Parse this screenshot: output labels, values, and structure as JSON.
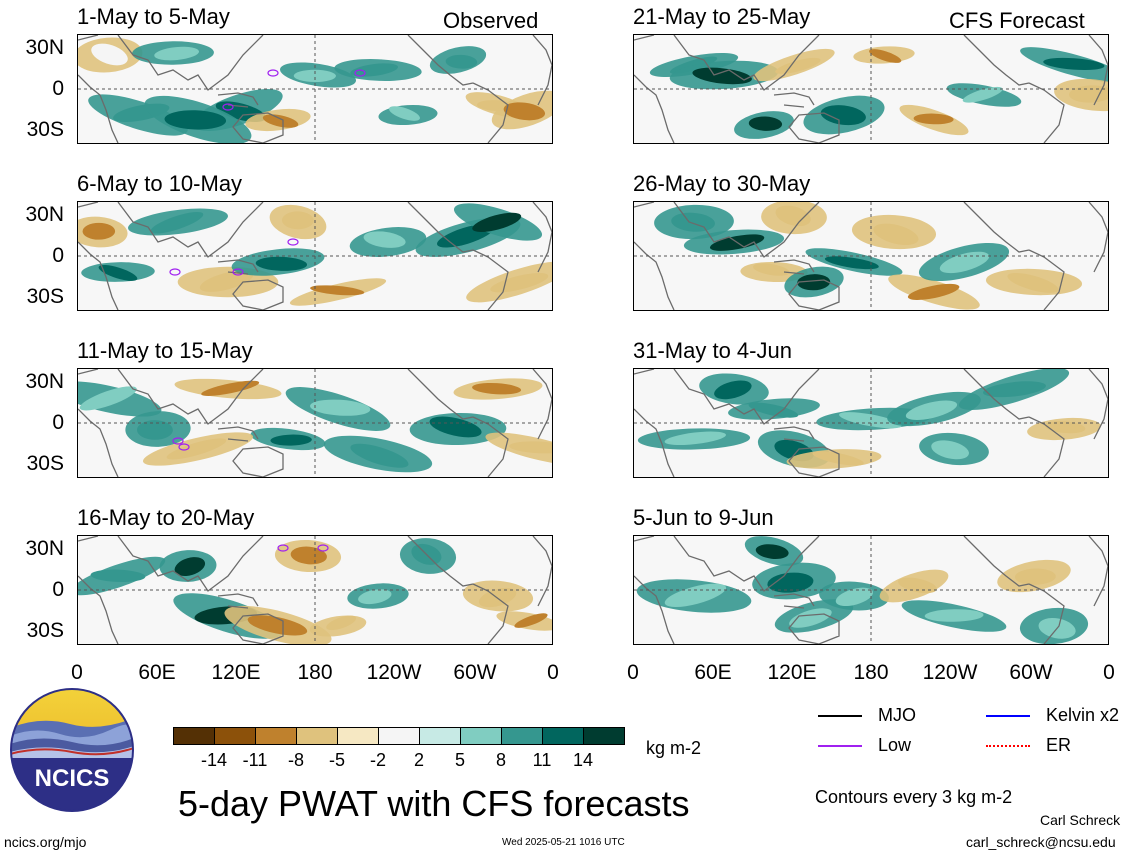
{
  "corner_labels": {
    "left": "Observed",
    "right": "CFS Forecast"
  },
  "lat_labels": [
    "30N",
    "0",
    "30S"
  ],
  "lon_labels": [
    "0",
    "60E",
    "120E",
    "180",
    "120W",
    "60W",
    "0"
  ],
  "panels": [
    {
      "title": "1-May to 5-May",
      "kind": "Observed"
    },
    {
      "title": "6-May to 10-May",
      "kind": "Observed"
    },
    {
      "title": "11-May to 15-May",
      "kind": "Observed"
    },
    {
      "title": "16-May to 20-May",
      "kind": "Observed"
    },
    {
      "title": "21-May to 25-May",
      "kind": "CFS Forecast"
    },
    {
      "title": "26-May to 30-May",
      "kind": "CFS Forecast"
    },
    {
      "title": "31-May to 4-Jun",
      "kind": "CFS Forecast"
    },
    {
      "title": "5-Jun to 9-Jun",
      "kind": "CFS Forecast"
    }
  ],
  "colorbar": {
    "colors": [
      "#543005",
      "#8c510a",
      "#bf812d",
      "#dfc27d",
      "#f6e8c3",
      "#f5f5f5",
      "#c7eae5",
      "#80cdc1",
      "#35978f",
      "#01665e",
      "#003c30"
    ],
    "labels": [
      "-14",
      "-11",
      "-8",
      "-5",
      "-2",
      "2",
      "5",
      "8",
      "11",
      "14"
    ],
    "units": "kg m-2"
  },
  "legend": [
    {
      "label": "MJO",
      "color": "#000000"
    },
    {
      "label": "Kelvin x2",
      "color": "#0000ff"
    },
    {
      "label": "Low",
      "color": "#a020f0"
    },
    {
      "label": "ER",
      "color": "#ff0000"
    }
  ],
  "title": "5-day PWAT with CFS forecasts",
  "contours_note": "Contours every 3 kg m-2",
  "logo_text": "NCICS",
  "footer": {
    "url": "ncics.org/mjo",
    "timestamp": "Wed 2025-05-21 1016 UTC",
    "author": "Carl Schreck",
    "email": "carl_schreck@ncsu.edu"
  }
}
